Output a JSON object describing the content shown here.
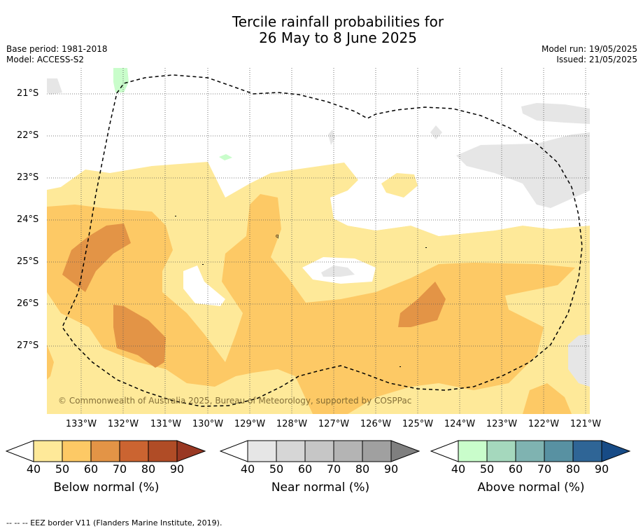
{
  "title_line1": "Tercile rainfall probabilities for",
  "title_line2": "26 May to 8 June 2025",
  "base_period": "Base period: 1981-2018",
  "model": "Model: ACCESS-S2",
  "model_run": "Model run: 19/05/2025",
  "issued": "Issued: 21/05/2025",
  "lat_labels": [
    "21°S",
    "22°S",
    "23°S",
    "24°S",
    "25°S",
    "26°S",
    "27°S"
  ],
  "lon_labels": [
    "133°W",
    "132°W",
    "131°W",
    "130°W",
    "129°W",
    "128°W",
    "127°W",
    "126°W",
    "125°W",
    "124°W",
    "123°W",
    "122°W",
    "121°W"
  ],
  "copyright": "© Commonwealth of Australia 2025, Bureau of Meteorology, supported by COSPPac",
  "colorbars": [
    {
      "title": "Below normal (%)",
      "ticks": [
        "40",
        "50",
        "60",
        "70",
        "80",
        "90"
      ],
      "colors": [
        "#fee999",
        "#fdc965",
        "#e39446",
        "#cb6431",
        "#b04c26",
        "#993823"
      ]
    },
    {
      "title": "Near normal (%)",
      "ticks": [
        "40",
        "50",
        "60",
        "70",
        "80",
        "90"
      ],
      "colors": [
        "#e6e6e6",
        "#d6d6d6",
        "#c6c6c6",
        "#b4b4b4",
        "#a0a0a0",
        "#7f7f7f"
      ]
    },
    {
      "title": "Above normal (%)",
      "ticks": [
        "40",
        "50",
        "60",
        "70",
        "80",
        "90"
      ],
      "colors": [
        "#c9fdcb",
        "#a5d8bd",
        "#7fb3b1",
        "#5891a2",
        "#2f6596",
        "#174b86"
      ]
    }
  ],
  "footnote": "--  --  -- EEZ border V11 (Flanders Marine Institute, 2019)."
}
